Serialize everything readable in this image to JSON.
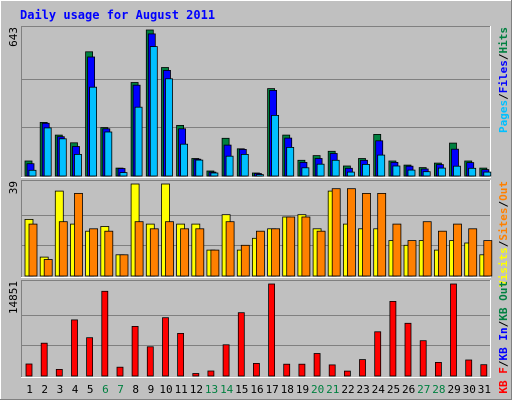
{
  "chart_data": {
    "type": "bar",
    "title": "Daily usage for August 2011",
    "categories": [
      "1",
      "2",
      "3",
      "4",
      "5",
      "6",
      "7",
      "8",
      "9",
      "10",
      "11",
      "12",
      "13",
      "14",
      "15",
      "16",
      "17",
      "18",
      "19",
      "20",
      "21",
      "22",
      "23",
      "24",
      "25",
      "26",
      "27",
      "28",
      "29",
      "30",
      "31"
    ],
    "weekend_days": [
      "6",
      "7",
      "13",
      "14",
      "20",
      "21",
      "27",
      "28"
    ],
    "colors": {
      "background": "#c0c0c0",
      "frame": "#ffffff",
      "title": "#0000ff",
      "hits": "#008040",
      "files": "#0000ff",
      "pages": "#00c0ff",
      "visits": "#ffff00",
      "sites": "#ff8000",
      "kbin": "#0000ff",
      "kbout": "#008040",
      "kbf": "#ff0000",
      "weekend_label": "#008040",
      "weekday_label": "#000000"
    },
    "panels": [
      {
        "name": "top",
        "max_label": "643",
        "ymax": 643,
        "legend": [
          {
            "text": "Pages",
            "color": "#00c0ff"
          },
          {
            "text": "/",
            "color": "#000000"
          },
          {
            "text": "Files",
            "color": "#0000ff"
          },
          {
            "text": "/",
            "color": "#000000"
          },
          {
            "text": "Hits",
            "color": "#008040"
          }
        ],
        "series": [
          {
            "name": "Hits",
            "color": "#008040",
            "values": [
              66,
              236,
              180,
              146,
              547,
              213,
              35,
              412,
              643,
              478,
              223,
              77,
              22,
              166,
              120,
              13,
              385,
              180,
              69,
              90,
              109,
              44,
              77,
              183,
              66,
              48,
              37,
              57,
              145,
              66,
              35
            ]
          },
          {
            "name": "Files",
            "color": "#0000ff",
            "values": [
              54,
              232,
              173,
              130,
              524,
              208,
              33,
              400,
              626,
              465,
              208,
              74,
              17,
              136,
              117,
              11,
              377,
              167,
              60,
              77,
              99,
              34,
              69,
              155,
              60,
              43,
              31,
              50,
              118,
              59,
              28
            ]
          },
          {
            "name": "Pages",
            "color": "#00c0ff",
            "values": [
              25,
              212,
              164,
              95,
              391,
              194,
              15,
              303,
              570,
              428,
              140,
              70,
              13,
              87,
              95,
              6,
              267,
              126,
              36,
              52,
              69,
              17,
              51,
              92,
              44,
              26,
              19,
              35,
              43,
              34,
              17
            ]
          }
        ]
      },
      {
        "name": "middle",
        "max_label": "39",
        "ymax": 39,
        "legend": [
          {
            "text": "Visits",
            "color": "#ffff00"
          },
          {
            "text": "/",
            "color": "#000000"
          },
          {
            "text": "Sites",
            "color": "#ff8000"
          },
          {
            "text": "/",
            "color": "#000000"
          },
          {
            "text": "Out",
            "color": "#ff8000"
          }
        ],
        "series": [
          {
            "name": "Visits",
            "color": "#ffff00",
            "values": [
              24,
              8,
              36,
              22,
              19,
              21,
              9,
              39,
              22,
              39,
              22,
              22,
              11,
              26,
              11,
              16,
              20,
              25,
              26,
              20,
              36,
              22,
              20,
              20,
              15,
              13,
              15,
              11,
              15,
              14,
              9
            ]
          },
          {
            "name": "Sites",
            "color": "#ff8000",
            "values": [
              22,
              7,
              23,
              35,
              20,
              19,
              9,
              23,
              20,
              23,
              20,
              20,
              11,
              23,
              13,
              19,
              20,
              25,
              25,
              19,
              37,
              37,
              35,
              35,
              22,
              15,
              23,
              19,
              22,
              20,
              15
            ]
          }
        ]
      },
      {
        "name": "bottom",
        "max_label": "14851",
        "ymax": 14851,
        "legend": [
          {
            "text": "KB F",
            "color": "#ff0000"
          },
          {
            "text": "/",
            "color": "#000000"
          },
          {
            "text": "KB In",
            "color": "#0000ff"
          },
          {
            "text": "/",
            "color": "#000000"
          },
          {
            "text": "KB Out",
            "color": "#008040"
          }
        ],
        "series": [
          {
            "name": "KB F",
            "color": "#ff0000",
            "values": [
              1944,
              5287,
              1064,
              9061,
              6176,
              13668,
              1424,
              8004,
              4721,
              9407,
              6876,
              408,
              804,
              5035,
              10215,
              2040,
              14851,
              1908,
              1908,
              3640,
              1796,
              790,
              2640,
              7130,
              12036,
              8500,
              5700,
              2200,
              14851,
              2590,
              1830
            ]
          }
        ]
      }
    ]
  }
}
